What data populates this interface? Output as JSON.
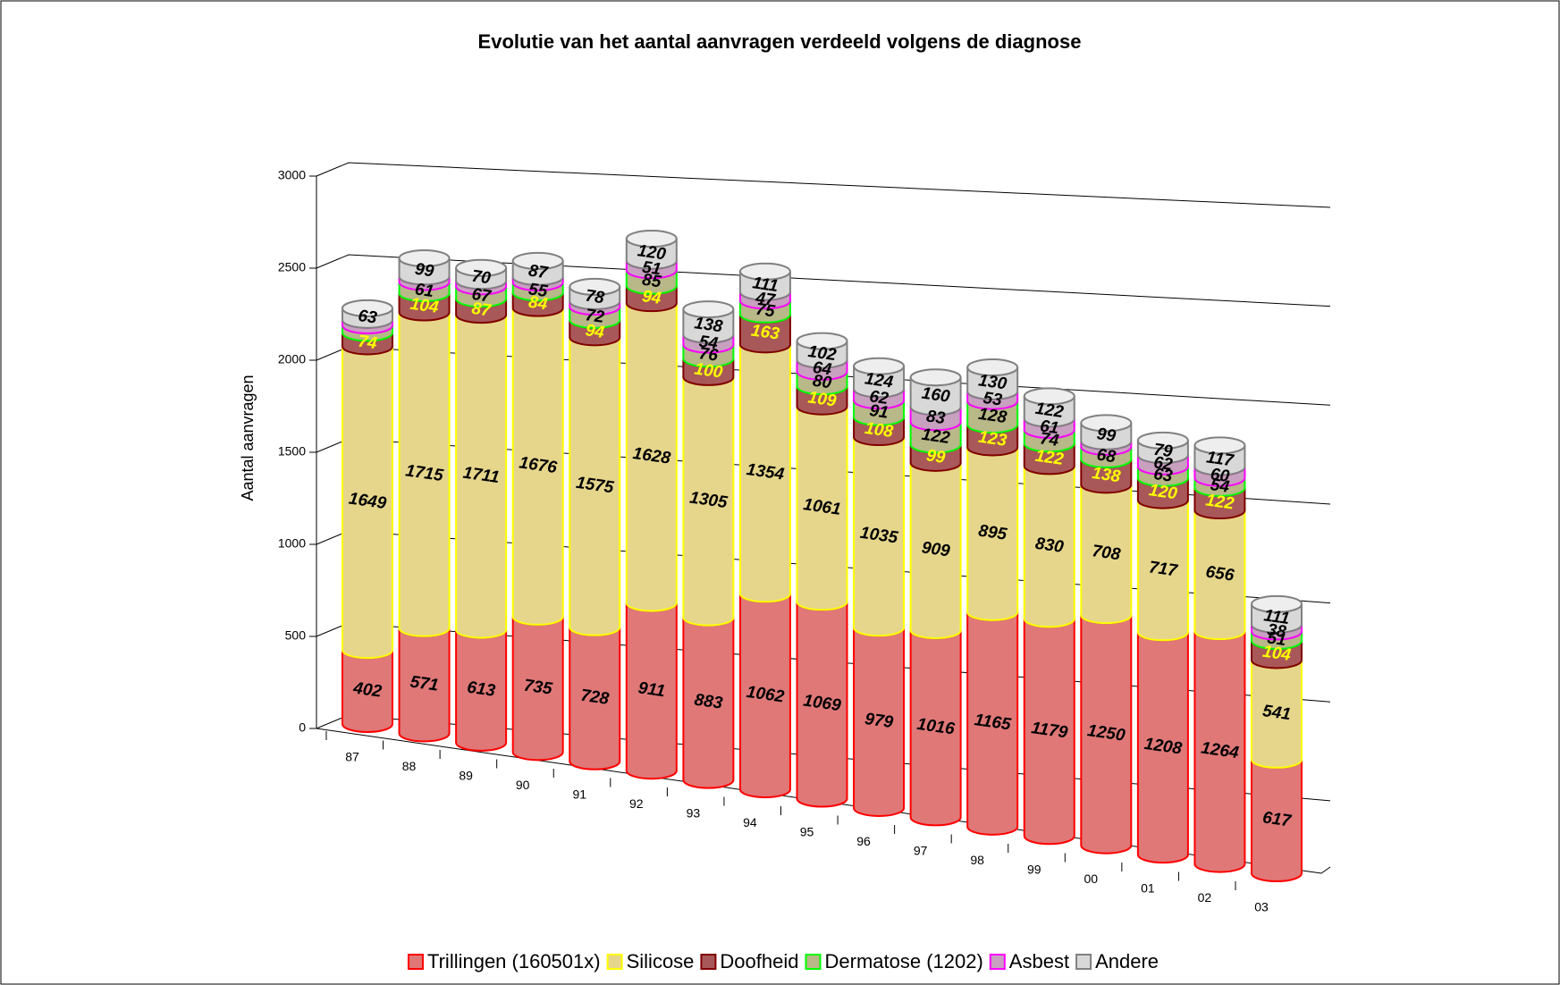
{
  "chart_data": {
    "type": "bar3d",
    "title": "Evolutie van het aantal aanvragen verdeeld volgens de diagnose",
    "y_label": "Aantal aanvragen",
    "categories": [
      "87",
      "88",
      "89",
      "90",
      "91",
      "92",
      "93",
      "94",
      "95",
      "96",
      "97",
      "98",
      "99",
      "00",
      "01",
      "02",
      "03"
    ],
    "ylim": [
      0,
      3000
    ],
    "yticks": [
      0,
      500,
      1000,
      1500,
      2000,
      2500,
      3000
    ],
    "grid": true,
    "stacked": true,
    "legend": "bottom",
    "series": [
      {
        "name": "Trillingen (160501x)",
        "color": "#e07878",
        "edge_color": "#ff0000",
        "label_color": "#000000",
        "values": [
          402,
          571,
          613,
          735,
          728,
          911,
          883,
          1062,
          1069,
          979,
          1016,
          1165,
          1179,
          1250,
          1208,
          1264,
          617
        ]
      },
      {
        "name": "Silicose",
        "color": "#e6d68c",
        "edge_color": "#ffff00",
        "label_color": "#000000",
        "values": [
          1649,
          1715,
          1711,
          1676,
          1575,
          1628,
          1305,
          1354,
          1061,
          1035,
          909,
          895,
          830,
          708,
          717,
          656,
          541
        ]
      },
      {
        "name": "Doofheid",
        "color": "#a85858",
        "edge_color": "#800000",
        "label_color": "#ffff00",
        "values": [
          74,
          104,
          87,
          84,
          94,
          94,
          100,
          163,
          109,
          108,
          99,
          123,
          122,
          138,
          120,
          122,
          104
        ]
      },
      {
        "name": "Dermatose (1202)",
        "color": "#b8b888",
        "edge_color": "#00ff00",
        "label_color": "#000000",
        "values": [
          40,
          61,
          67,
          55,
          72,
          85,
          76,
          75,
          80,
          91,
          122,
          128,
          74,
          68,
          63,
          54,
          51
        ],
        "value_labels": [
          null,
          "61",
          "67",
          "55",
          "72",
          "85",
          "76",
          "75",
          "80",
          "91",
          "122",
          "128",
          "74",
          "68",
          "63",
          "54",
          "51"
        ]
      },
      {
        "name": "Asbest",
        "color": "#c8a0c0",
        "edge_color": "#ff00ff",
        "label_color": "#000000",
        "values": [
          30,
          30,
          30,
          30,
          30,
          51,
          54,
          47,
          64,
          62,
          83,
          53,
          61,
          30,
          62,
          60,
          38
        ],
        "value_labels": [
          null,
          null,
          null,
          null,
          null,
          "51",
          "54",
          "47",
          "64",
          "62",
          "83",
          "53",
          "61",
          null,
          "62",
          "60",
          "38"
        ]
      },
      {
        "name": "Andere",
        "color": "#d8d8d8",
        "edge_color": "#808080",
        "label_color": "#000000",
        "values": [
          63,
          99,
          70,
          87,
          78,
          120,
          138,
          111,
          102,
          124,
          160,
          130,
          122,
          99,
          79,
          117,
          111
        ]
      }
    ]
  }
}
